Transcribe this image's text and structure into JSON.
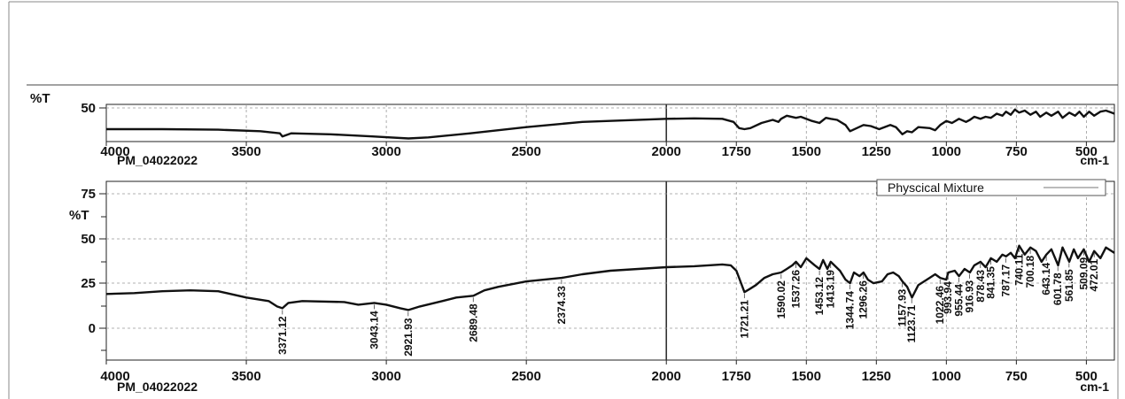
{
  "chart_data": [
    {
      "type": "line",
      "ylabel": "%T",
      "sample_label": "PM_04022022",
      "unit_label": "cm-1",
      "xlim": [
        4000,
        400
      ],
      "x_reversed": true,
      "ylim": [
        18,
        54
      ],
      "yticks": [
        "50"
      ],
      "xticks": [
        "4000",
        "3500",
        "3000",
        "2500",
        "2000",
        "1750",
        "1500",
        "1250",
        "1000",
        "750",
        "500"
      ],
      "grid": true,
      "series": [
        {
          "x": [
            4000,
            3800,
            3600,
            3450,
            3380,
            3371,
            3340,
            3200,
            3050,
            2921,
            2850,
            2700,
            2500,
            2300,
            2000,
            1900,
            1800,
            1760,
            1740,
            1721,
            1700,
            1660,
            1620,
            1600,
            1590,
            1570,
            1537,
            1520,
            1480,
            1453,
            1430,
            1413,
            1390,
            1360,
            1344,
            1320,
            1296,
            1270,
            1240,
            1200,
            1180,
            1157,
            1140,
            1123,
            1100,
            1060,
            1040,
            1022,
            1000,
            980,
            955,
            930,
            916,
            900,
            878,
            860,
            841,
            820,
            800,
            787,
            770,
            755,
            740,
            720,
            700,
            680,
            665,
            643,
            625,
            601,
            585,
            561,
            540,
            525,
            509,
            490,
            472,
            450,
            430,
            410,
            400
          ],
          "y": [
            30,
            30,
            29.5,
            28,
            26,
            23,
            26,
            25,
            23,
            21,
            22,
            26,
            32,
            37,
            40,
            40.5,
            40,
            37,
            31,
            30,
            31,
            36,
            39,
            37,
            40,
            43,
            41,
            42,
            38,
            36,
            41,
            40,
            39,
            34,
            28,
            31,
            34,
            33,
            30,
            34,
            32,
            25,
            28,
            27,
            32,
            31,
            29,
            34,
            38,
            36,
            40,
            37,
            39,
            42,
            40,
            42,
            41,
            45,
            43,
            47,
            44,
            49,
            46,
            48,
            44,
            47,
            42,
            46,
            43,
            47,
            41,
            46,
            43,
            47,
            42,
            47,
            43,
            47,
            48,
            46,
            45
          ]
        }
      ]
    },
    {
      "type": "line",
      "ylabel": "%T",
      "sample_label": "PM_04022022",
      "unit_label": "cm-1",
      "xlim": [
        4000,
        400
      ],
      "x_reversed": true,
      "ylim": [
        -15,
        85
      ],
      "yticks": [
        "75",
        "50",
        "25",
        "0"
      ],
      "xticks": [
        "4000",
        "3500",
        "3000",
        "2500",
        "2000",
        "1750",
        "1500",
        "1250",
        "1000",
        "750",
        "500"
      ],
      "grid": true,
      "legend": {
        "label": "Physcical Mixture",
        "placement": "top-right"
      },
      "series": [
        {
          "name": "Physcical Mixture",
          "x": [
            4000,
            3900,
            3800,
            3700,
            3600,
            3500,
            3420,
            3390,
            3371,
            3350,
            3300,
            3150,
            3100,
            3043,
            3000,
            2950,
            2921,
            2880,
            2800,
            2750,
            2689,
            2650,
            2600,
            2500,
            2374,
            2300,
            2200,
            2100,
            2000,
            1900,
            1850,
            1800,
            1770,
            1750,
            1721,
            1700,
            1680,
            1650,
            1620,
            1590,
            1570,
            1550,
            1537,
            1520,
            1500,
            1470,
            1453,
            1440,
            1425,
            1413,
            1400,
            1380,
            1360,
            1344,
            1330,
            1310,
            1296,
            1280,
            1260,
            1230,
            1210,
            1190,
            1170,
            1157,
            1140,
            1123,
            1100,
            1060,
            1040,
            1022,
            1000,
            993,
            970,
            955,
            935,
            916,
            900,
            878,
            860,
            841,
            820,
            800,
            787,
            770,
            755,
            740,
            720,
            700,
            680,
            660,
            643,
            625,
            601,
            585,
            561,
            545,
            530,
            509,
            490,
            472,
            450,
            430,
            410,
            400
          ],
          "y": [
            22,
            22.5,
            23.5,
            24,
            23.5,
            20,
            18,
            15,
            14,
            17,
            18,
            17.5,
            16,
            17,
            16,
            14,
            13,
            15,
            18,
            20,
            21,
            24,
            26,
            29,
            31,
            33,
            35,
            36,
            37,
            37.5,
            38,
            38.5,
            38,
            35,
            23,
            25,
            27,
            31,
            33,
            34,
            36,
            38,
            40,
            37,
            42,
            38,
            36,
            41,
            36,
            40,
            38,
            35,
            30,
            28,
            34,
            32,
            34,
            30,
            28,
            29,
            33,
            34,
            32,
            29,
            26,
            20,
            27,
            31,
            33,
            31,
            30,
            34,
            35,
            32,
            36,
            34,
            38,
            40,
            37,
            42,
            40,
            44,
            43,
            45,
            42,
            49,
            44,
            48,
            46,
            40,
            44,
            47,
            38,
            48,
            40,
            47,
            42,
            47,
            40,
            46,
            42,
            48,
            46,
            45
          ]
        }
      ],
      "peak_labels": [
        "3371.12",
        "3043.14",
        "2921.93",
        "2689.48",
        "2374.33",
        "1721.21",
        "1590.02",
        "1537.26",
        "1453.12",
        "1413.19",
        "1344.74",
        "1296.26",
        "1157.93",
        "1123.71",
        "1022.46",
        "993.94",
        "955.44",
        "916.93",
        "878.43",
        "841.35",
        "787.17",
        "740.11",
        "700.18",
        "643.14",
        "601.78",
        "561.85",
        "509.09",
        "472.01"
      ],
      "peak_x": [
        3371.12,
        3043.14,
        2921.93,
        2689.48,
        2374.33,
        1721.21,
        1590.02,
        1537.26,
        1453.12,
        1413.19,
        1344.74,
        1296.26,
        1157.93,
        1123.71,
        1022.46,
        993.94,
        955.44,
        916.93,
        878.43,
        841.35,
        787.17,
        740.11,
        700.18,
        643.14,
        601.78,
        561.85,
        509.09,
        472.01
      ]
    }
  ]
}
